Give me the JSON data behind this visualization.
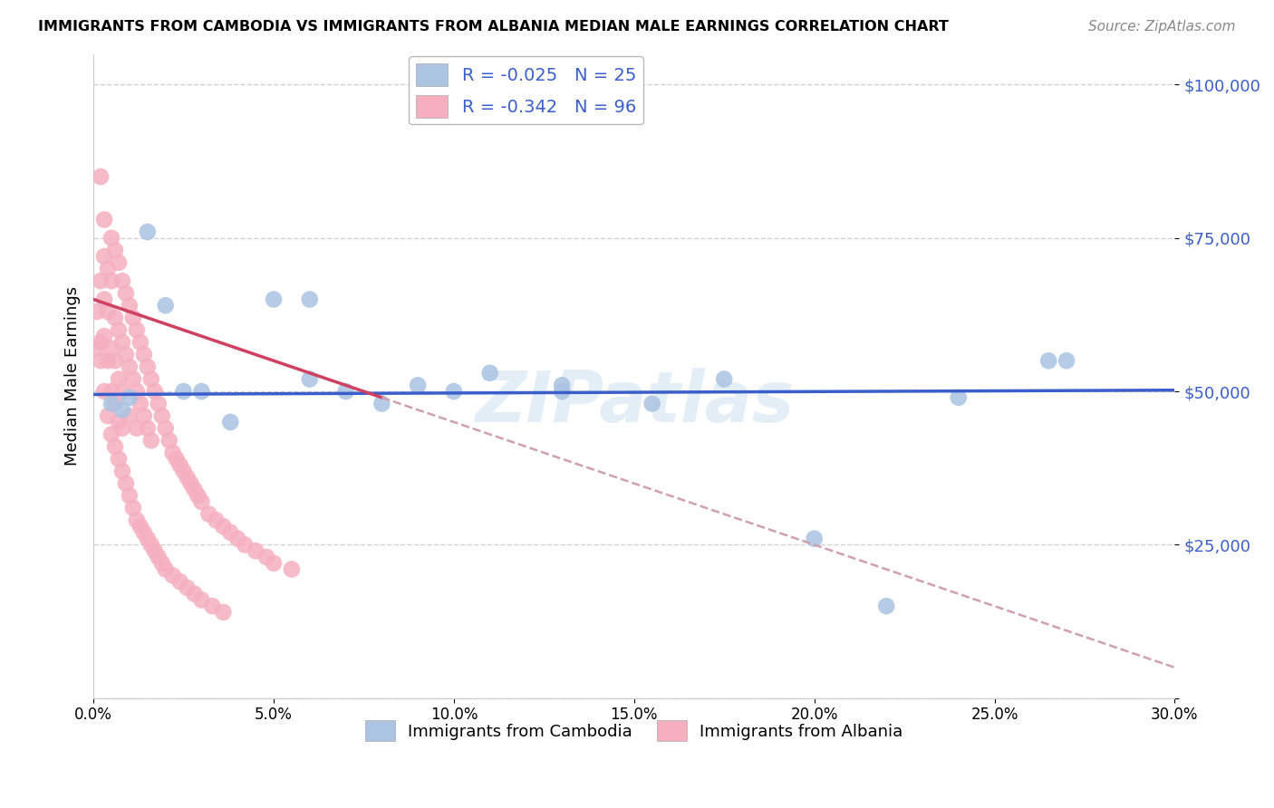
{
  "title": "IMMIGRANTS FROM CAMBODIA VS IMMIGRANTS FROM ALBANIA MEDIAN MALE EARNINGS CORRELATION CHART",
  "source": "Source: ZipAtlas.com",
  "ylabel": "Median Male Earnings",
  "yticks": [
    0,
    25000,
    50000,
    75000,
    100000
  ],
  "ytick_labels": [
    "",
    "$25,000",
    "$50,000",
    "$75,000",
    "$100,000"
  ],
  "xmin": 0.0,
  "xmax": 0.3,
  "ymin": 0,
  "ymax": 105000,
  "cambodia_color": "#aac4e2",
  "albania_color": "#f5afc0",
  "trendline_cambodia_color": "#3a5ecc",
  "trendline_albania_color": "#d04060",
  "trendline_dashed_color": "#d0a0b0",
  "watermark": "ZIPatlas",
  "grid_color": "#cccccc",
  "text_color": "#3a5ecc",
  "cambodia_x": [
    0.005,
    0.008,
    0.01,
    0.015,
    0.02,
    0.025,
    0.03,
    0.038,
    0.05,
    0.06,
    0.07,
    0.08,
    0.09,
    0.1,
    0.11,
    0.13,
    0.155,
    0.175,
    0.2,
    0.22,
    0.24,
    0.265,
    0.27,
    0.13,
    0.06
  ],
  "cambodia_y": [
    48000,
    47000,
    49000,
    76000,
    64000,
    50000,
    50000,
    45000,
    65000,
    52000,
    50000,
    48000,
    51000,
    50000,
    53000,
    50000,
    48000,
    52000,
    26000,
    15000,
    49000,
    55000,
    55000,
    51000,
    65000
  ],
  "albania_x": [
    0.001,
    0.001,
    0.002,
    0.002,
    0.002,
    0.003,
    0.003,
    0.003,
    0.003,
    0.004,
    0.004,
    0.004,
    0.005,
    0.005,
    0.005,
    0.005,
    0.006,
    0.006,
    0.006,
    0.006,
    0.007,
    0.007,
    0.007,
    0.007,
    0.008,
    0.008,
    0.008,
    0.008,
    0.009,
    0.009,
    0.01,
    0.01,
    0.01,
    0.011,
    0.011,
    0.012,
    0.012,
    0.012,
    0.013,
    0.013,
    0.014,
    0.014,
    0.015,
    0.015,
    0.016,
    0.016,
    0.017,
    0.018,
    0.019,
    0.02,
    0.021,
    0.022,
    0.023,
    0.024,
    0.025,
    0.026,
    0.027,
    0.028,
    0.029,
    0.03,
    0.032,
    0.034,
    0.036,
    0.038,
    0.04,
    0.042,
    0.045,
    0.048,
    0.05,
    0.055,
    0.002,
    0.003,
    0.004,
    0.005,
    0.006,
    0.007,
    0.008,
    0.009,
    0.01,
    0.011,
    0.012,
    0.013,
    0.014,
    0.015,
    0.016,
    0.017,
    0.018,
    0.019,
    0.02,
    0.022,
    0.024,
    0.026,
    0.028,
    0.03,
    0.033,
    0.036
  ],
  "albania_y": [
    57000,
    63000,
    85000,
    58000,
    68000,
    78000,
    72000,
    65000,
    59000,
    70000,
    63000,
    55000,
    75000,
    68000,
    57000,
    50000,
    73000,
    62000,
    55000,
    48000,
    71000,
    60000,
    52000,
    45000,
    68000,
    58000,
    50000,
    44000,
    66000,
    56000,
    64000,
    54000,
    46000,
    62000,
    52000,
    60000,
    50000,
    44000,
    58000,
    48000,
    56000,
    46000,
    54000,
    44000,
    52000,
    42000,
    50000,
    48000,
    46000,
    44000,
    42000,
    40000,
    39000,
    38000,
    37000,
    36000,
    35000,
    34000,
    33000,
    32000,
    30000,
    29000,
    28000,
    27000,
    26000,
    25000,
    24000,
    23000,
    22000,
    21000,
    55000,
    50000,
    46000,
    43000,
    41000,
    39000,
    37000,
    35000,
    33000,
    31000,
    29000,
    28000,
    27000,
    26000,
    25000,
    24000,
    23000,
    22000,
    21000,
    20000,
    19000,
    18000,
    17000,
    16000,
    15000,
    14000
  ]
}
